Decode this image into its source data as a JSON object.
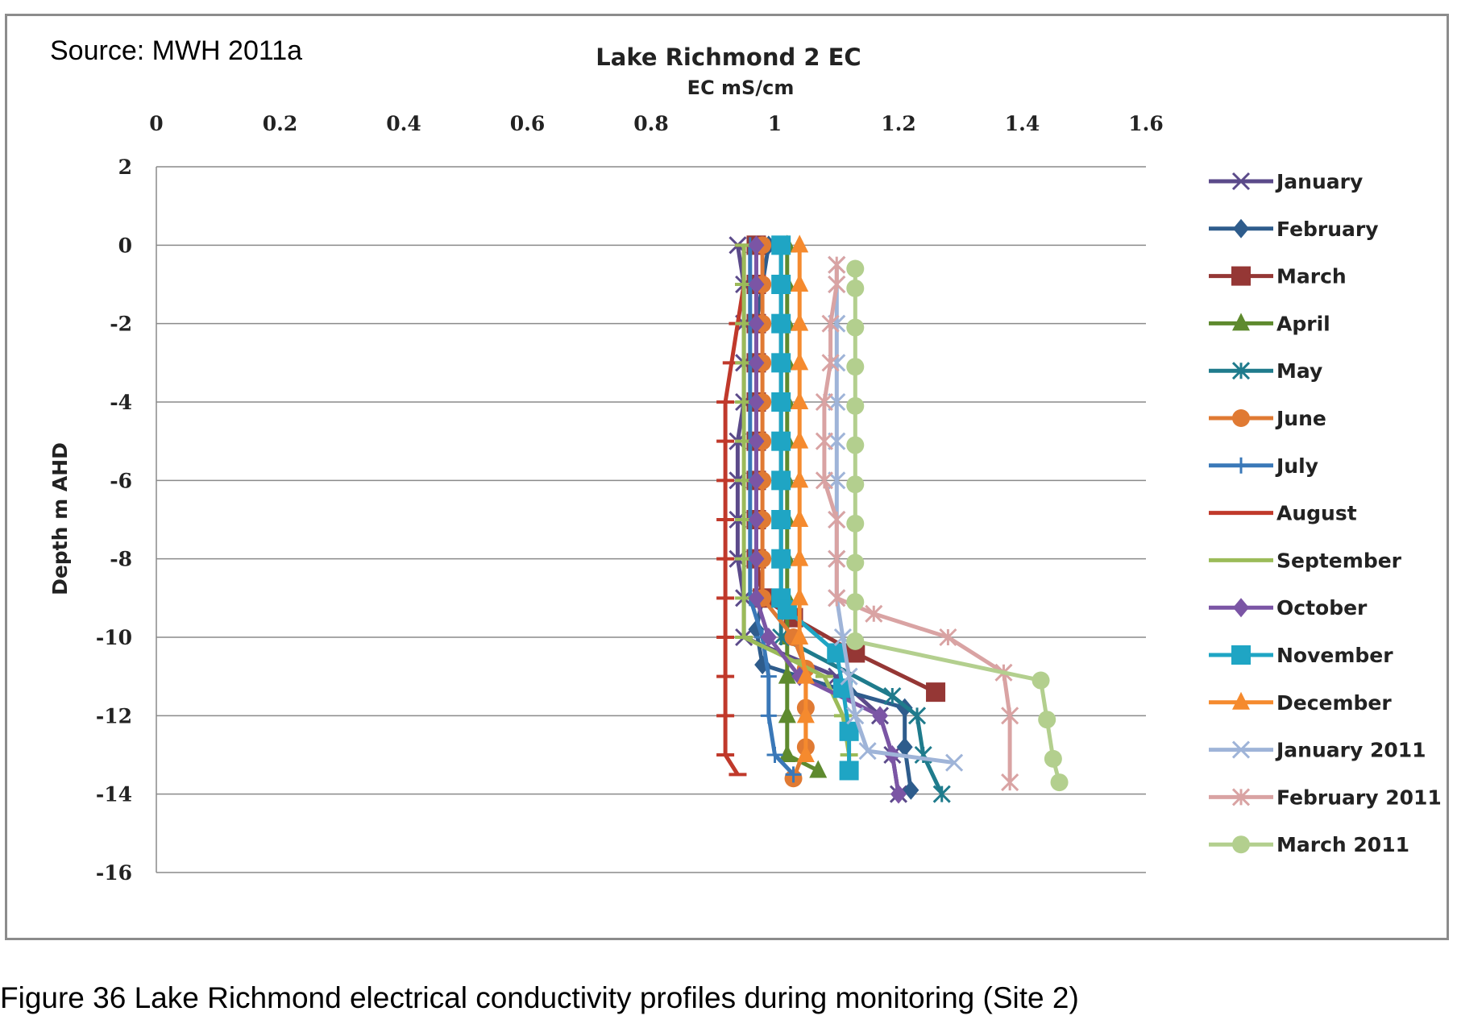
{
  "source_note": "Source: MWH 2011a",
  "figure_caption": "Figure 36  Lake Richmond electrical conductivity profiles during monitoring (Site 2)",
  "chart_data": {
    "type": "line",
    "title": "Lake Richmond 2 EC",
    "xlabel": "EC mS/cm",
    "ylabel": "Depth m AHD",
    "x_axis_position": "top",
    "xlim": [
      0,
      1.6
    ],
    "ylim": [
      -16,
      2
    ],
    "x_ticks": [
      "0",
      "0.2",
      "0.4",
      "0.6",
      "0.8",
      "1",
      "1.2",
      "1.4",
      "1.6"
    ],
    "y_ticks": [
      "2",
      "0",
      "-2",
      "-4",
      "-6",
      "-8",
      "-10",
      "-12",
      "-14",
      "-16"
    ],
    "grid": "horizontal",
    "legend_position": "right",
    "series": [
      {
        "name": "January",
        "color": "#5b4a8a",
        "marker": "x",
        "points": [
          [
            0.94,
            0
          ],
          [
            0.95,
            -1
          ],
          [
            0.95,
            -2
          ],
          [
            0.95,
            -3
          ],
          [
            0.95,
            -4
          ],
          [
            0.94,
            -5
          ],
          [
            0.94,
            -6
          ],
          [
            0.94,
            -7
          ],
          [
            0.94,
            -8
          ],
          [
            0.95,
            -9
          ],
          [
            0.95,
            -10
          ],
          [
            1.1,
            -11
          ],
          [
            1.17,
            -12
          ],
          [
            1.19,
            -13
          ],
          [
            1.2,
            -14
          ]
        ]
      },
      {
        "name": "February",
        "color": "#2e5c8c",
        "marker": "diamond",
        "points": [
          [
            0.99,
            0
          ],
          [
            0.98,
            -1
          ],
          [
            0.97,
            -2
          ],
          [
            0.97,
            -3
          ],
          [
            0.97,
            -4
          ],
          [
            0.97,
            -5
          ],
          [
            0.97,
            -6
          ],
          [
            0.97,
            -7
          ],
          [
            0.97,
            -8
          ],
          [
            0.98,
            -9
          ],
          [
            0.97,
            -9.8
          ],
          [
            0.98,
            -10.7
          ],
          [
            1.12,
            -11.4
          ],
          [
            1.21,
            -11.8
          ],
          [
            1.21,
            -12.8
          ],
          [
            1.22,
            -13.9
          ]
        ]
      },
      {
        "name": "March",
        "color": "#953735",
        "marker": "square",
        "points": [
          [
            0.97,
            0
          ],
          [
            0.97,
            -1
          ],
          [
            0.97,
            -2
          ],
          [
            0.97,
            -3
          ],
          [
            0.97,
            -4
          ],
          [
            0.97,
            -5
          ],
          [
            0.97,
            -6
          ],
          [
            0.97,
            -7
          ],
          [
            0.97,
            -8
          ],
          [
            0.98,
            -9
          ],
          [
            1.03,
            -9.5
          ],
          [
            1.13,
            -10.4
          ],
          [
            1.26,
            -11.4
          ]
        ]
      },
      {
        "name": "April",
        "color": "#5e8a2e",
        "marker": "triangle",
        "points": [
          [
            1.02,
            0
          ],
          [
            1.02,
            -1
          ],
          [
            1.02,
            -2
          ],
          [
            1.02,
            -3
          ],
          [
            1.02,
            -4
          ],
          [
            1.02,
            -5
          ],
          [
            1.02,
            -6
          ],
          [
            1.02,
            -7
          ],
          [
            1.02,
            -8
          ],
          [
            1.02,
            -9
          ],
          [
            1.02,
            -10
          ],
          [
            1.02,
            -11
          ],
          [
            1.02,
            -12
          ],
          [
            1.02,
            -13
          ],
          [
            1.07,
            -13.4
          ]
        ]
      },
      {
        "name": "May",
        "color": "#1f7b8c",
        "marker": "asterisk",
        "points": [
          [
            1.01,
            0
          ],
          [
            1.01,
            -1
          ],
          [
            1.01,
            -2
          ],
          [
            1.01,
            -3
          ],
          [
            1.01,
            -4
          ],
          [
            1.01,
            -5
          ],
          [
            1.01,
            -6
          ],
          [
            1.01,
            -7
          ],
          [
            1.01,
            -8
          ],
          [
            1.01,
            -9
          ],
          [
            1.01,
            -10
          ],
          [
            1.19,
            -11.5
          ],
          [
            1.23,
            -12
          ],
          [
            1.24,
            -13
          ],
          [
            1.27,
            -14
          ]
        ]
      },
      {
        "name": "June",
        "color": "#e07a33",
        "marker": "circle",
        "points": [
          [
            0.98,
            0
          ],
          [
            0.98,
            -1
          ],
          [
            0.98,
            -2
          ],
          [
            0.98,
            -3
          ],
          [
            0.98,
            -4
          ],
          [
            0.98,
            -5
          ],
          [
            0.98,
            -6
          ],
          [
            0.98,
            -7
          ],
          [
            0.98,
            -8
          ],
          [
            0.98,
            -9
          ],
          [
            1.03,
            -10
          ],
          [
            1.05,
            -10.8
          ],
          [
            1.05,
            -11.8
          ],
          [
            1.05,
            -12.8
          ],
          [
            1.03,
            -13.6
          ]
        ]
      },
      {
        "name": "July",
        "color": "#3a78b8",
        "marker": "plus",
        "points": [
          [
            0.96,
            0
          ],
          [
            0.96,
            -1
          ],
          [
            0.96,
            -2
          ],
          [
            0.96,
            -3
          ],
          [
            0.96,
            -4
          ],
          [
            0.96,
            -5
          ],
          [
            0.96,
            -6
          ],
          [
            0.96,
            -7
          ],
          [
            0.96,
            -8
          ],
          [
            0.96,
            -9
          ],
          [
            0.98,
            -10
          ],
          [
            0.99,
            -11
          ],
          [
            0.99,
            -12
          ],
          [
            1.0,
            -13
          ],
          [
            1.03,
            -13.5
          ]
        ]
      },
      {
        "name": "August",
        "color": "#c0392b",
        "marker": "dash",
        "points": [
          [
            0.95,
            0
          ],
          [
            0.95,
            -1
          ],
          [
            0.94,
            -2
          ],
          [
            0.93,
            -3
          ],
          [
            0.92,
            -4
          ],
          [
            0.92,
            -5
          ],
          [
            0.92,
            -6
          ],
          [
            0.92,
            -7
          ],
          [
            0.92,
            -8
          ],
          [
            0.92,
            -9
          ],
          [
            0.92,
            -10
          ],
          [
            0.92,
            -11
          ],
          [
            0.92,
            -12
          ],
          [
            0.92,
            -13
          ],
          [
            0.94,
            -13.5
          ]
        ]
      },
      {
        "name": "September",
        "color": "#9bbb59",
        "marker": "dash",
        "points": [
          [
            0.95,
            0
          ],
          [
            0.95,
            -1
          ],
          [
            0.95,
            -2
          ],
          [
            0.95,
            -3
          ],
          [
            0.95,
            -4
          ],
          [
            0.95,
            -5
          ],
          [
            0.95,
            -6
          ],
          [
            0.95,
            -7
          ],
          [
            0.95,
            -8
          ],
          [
            0.95,
            -9
          ],
          [
            0.95,
            -10
          ],
          [
            1.03,
            -10.6
          ],
          [
            1.08,
            -11
          ],
          [
            1.11,
            -12
          ],
          [
            1.12,
            -13
          ],
          [
            1.12,
            -13.3
          ]
        ]
      },
      {
        "name": "October",
        "color": "#7b55a5",
        "marker": "diamond",
        "points": [
          [
            0.97,
            0
          ],
          [
            0.97,
            -1
          ],
          [
            0.97,
            -2
          ],
          [
            0.97,
            -3
          ],
          [
            0.97,
            -4
          ],
          [
            0.97,
            -5
          ],
          [
            0.97,
            -6
          ],
          [
            0.97,
            -7
          ],
          [
            0.97,
            -8
          ],
          [
            0.97,
            -9
          ],
          [
            0.99,
            -10
          ],
          [
            1.04,
            -11
          ],
          [
            1.17,
            -12
          ],
          [
            1.19,
            -13
          ],
          [
            1.2,
            -14
          ]
        ]
      },
      {
        "name": "November",
        "color": "#1fa5c4",
        "marker": "square",
        "points": [
          [
            1.01,
            0
          ],
          [
            1.01,
            -1
          ],
          [
            1.01,
            -2
          ],
          [
            1.01,
            -3
          ],
          [
            1.01,
            -4
          ],
          [
            1.01,
            -5
          ],
          [
            1.01,
            -6
          ],
          [
            1.01,
            -7
          ],
          [
            1.01,
            -8
          ],
          [
            1.01,
            -9
          ],
          [
            1.02,
            -9.3
          ],
          [
            1.1,
            -10.4
          ],
          [
            1.11,
            -11.3
          ],
          [
            1.12,
            -12.4
          ],
          [
            1.12,
            -13.4
          ]
        ]
      },
      {
        "name": "December",
        "color": "#f58a2e",
        "marker": "triangle",
        "points": [
          [
            1.04,
            0
          ],
          [
            1.04,
            -1
          ],
          [
            1.04,
            -2
          ],
          [
            1.04,
            -3
          ],
          [
            1.04,
            -4
          ],
          [
            1.04,
            -5
          ],
          [
            1.04,
            -6
          ],
          [
            1.04,
            -7
          ],
          [
            1.04,
            -8
          ],
          [
            1.04,
            -9
          ],
          [
            1.04,
            -10
          ],
          [
            1.05,
            -11
          ],
          [
            1.05,
            -12
          ],
          [
            1.05,
            -13
          ]
        ]
      },
      {
        "name": "January 2011",
        "color": "#9fb4d8",
        "marker": "x",
        "points": [
          [
            1.1,
            -0.5
          ],
          [
            1.1,
            -1
          ],
          [
            1.1,
            -2
          ],
          [
            1.1,
            -3
          ],
          [
            1.1,
            -4
          ],
          [
            1.1,
            -5
          ],
          [
            1.1,
            -6
          ],
          [
            1.1,
            -7
          ],
          [
            1.1,
            -8
          ],
          [
            1.1,
            -9
          ],
          [
            1.11,
            -10
          ],
          [
            1.12,
            -11
          ],
          [
            1.13,
            -12
          ],
          [
            1.15,
            -12.9
          ],
          [
            1.29,
            -13.2
          ]
        ]
      },
      {
        "name": "February 2011",
        "color": "#d9a3a3",
        "marker": "asterisk",
        "points": [
          [
            1.1,
            -0.5
          ],
          [
            1.1,
            -1
          ],
          [
            1.09,
            -2
          ],
          [
            1.09,
            -3
          ],
          [
            1.08,
            -4
          ],
          [
            1.08,
            -5
          ],
          [
            1.08,
            -6
          ],
          [
            1.1,
            -7
          ],
          [
            1.1,
            -8
          ],
          [
            1.1,
            -9
          ],
          [
            1.16,
            -9.4
          ],
          [
            1.28,
            -10
          ],
          [
            1.37,
            -10.9
          ],
          [
            1.38,
            -12
          ],
          [
            1.38,
            -13.7
          ]
        ]
      },
      {
        "name": "March 2011",
        "color": "#b3cf8e",
        "marker": "circle",
        "points": [
          [
            1.13,
            -0.6
          ],
          [
            1.13,
            -1.1
          ],
          [
            1.13,
            -2.1
          ],
          [
            1.13,
            -3.1
          ],
          [
            1.13,
            -4.1
          ],
          [
            1.13,
            -5.1
          ],
          [
            1.13,
            -6.1
          ],
          [
            1.13,
            -7.1
          ],
          [
            1.13,
            -8.1
          ],
          [
            1.13,
            -9.1
          ],
          [
            1.13,
            -10.1
          ],
          [
            1.43,
            -11.1
          ],
          [
            1.44,
            -12.1
          ],
          [
            1.45,
            -13.1
          ],
          [
            1.46,
            -13.7
          ]
        ]
      }
    ]
  }
}
